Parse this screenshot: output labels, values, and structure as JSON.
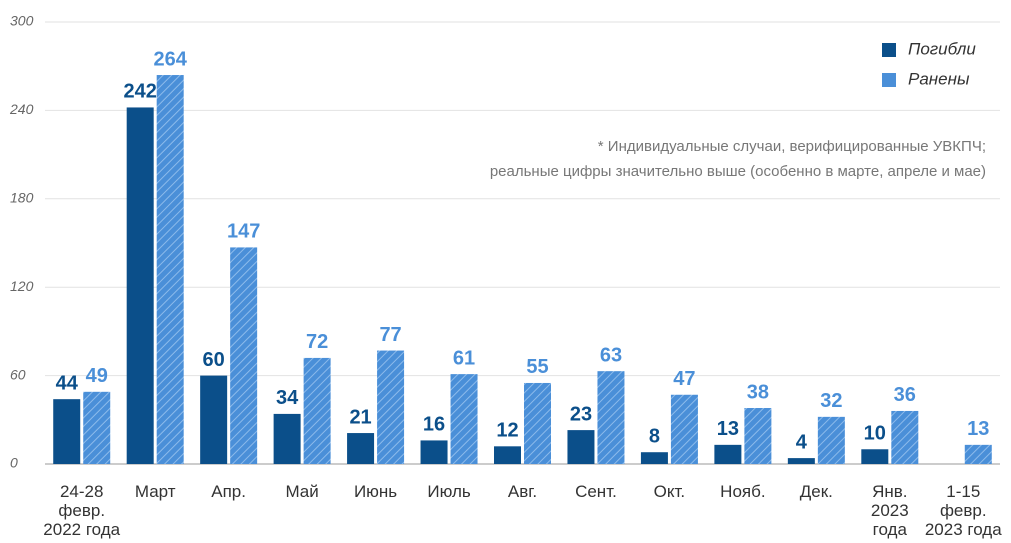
{
  "chart_data": {
    "type": "bar",
    "categories": [
      "24-28\nфевр.\n2022 года",
      "Март",
      "Апр.",
      "Май",
      "Июнь",
      "Июль",
      "Авг.",
      "Сент.",
      "Окт.",
      "Нояб.",
      "Дек.",
      "Янв.\n2023\nгода",
      "1-15\nфевр.\n2023 года"
    ],
    "series": [
      {
        "name": "Погибли",
        "color": "#0b4f8a",
        "values": [
          44,
          242,
          60,
          34,
          21,
          16,
          12,
          23,
          8,
          13,
          4,
          10,
          null
        ]
      },
      {
        "name": "Ранены",
        "color": "#4a8fd8",
        "values": [
          49,
          264,
          147,
          72,
          77,
          61,
          55,
          63,
          47,
          38,
          32,
          36,
          13
        ]
      }
    ],
    "ylim": [
      0,
      300
    ],
    "yticks": [
      0,
      60,
      120,
      180,
      240,
      300
    ],
    "grid": true,
    "legend": "upper right",
    "note": [
      "* Индивидуальные случаи, верифицированные УВКПЧ;",
      "реальные цифры значительно выше (особенно в марте, апреле и мае)"
    ]
  }
}
